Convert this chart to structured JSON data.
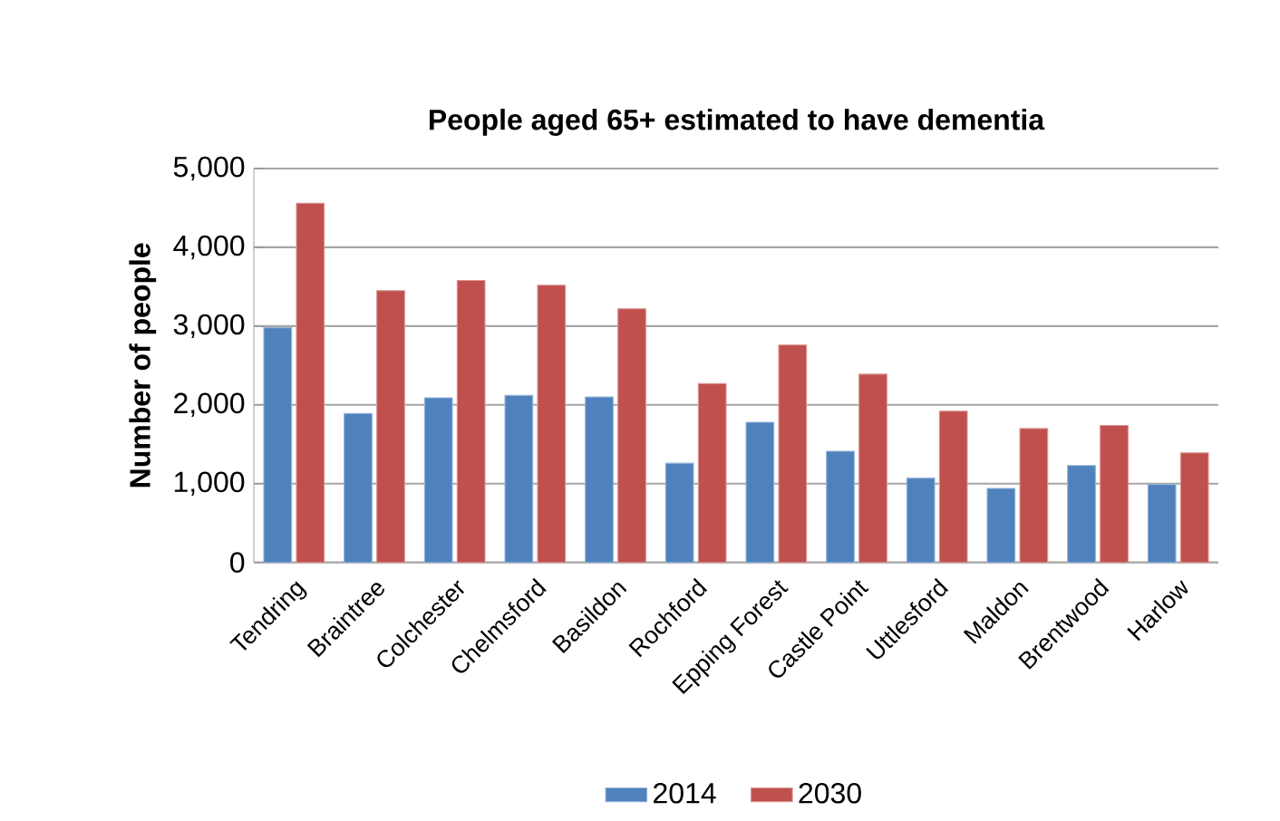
{
  "chart_data": {
    "type": "bar",
    "title": "People aged 65+ estimated to have dementia",
    "ylabel": "Number of people",
    "categories": [
      "Tendring",
      "Braintree",
      "Colchester",
      "Chelmsford",
      "Basildon",
      "Rochford",
      "Epping Forest",
      "Castle Point",
      "Uttlesford",
      "Maldon",
      "Brentwood",
      "Harlow"
    ],
    "series": [
      {
        "name": "2014",
        "color": "#4f81bd",
        "values": [
          2980,
          1890,
          2090,
          2120,
          2100,
          1260,
          1780,
          1410,
          1070,
          940,
          1230,
          990
        ]
      },
      {
        "name": "2030",
        "color": "#c0504d",
        "values": [
          4560,
          3450,
          3580,
          3520,
          3220,
          2270,
          2760,
          2390,
          1920,
          1700,
          1740,
          1390
        ]
      }
    ],
    "ylim": [
      0,
      5000
    ],
    "yticks": [
      {
        "value": 0,
        "label": "0"
      },
      {
        "value": 1000,
        "label": "1,000"
      },
      {
        "value": 2000,
        "label": "2,000"
      },
      {
        "value": 3000,
        "label": "3,000"
      },
      {
        "value": 4000,
        "label": "4,000"
      },
      {
        "value": 5000,
        "label": "5,000"
      }
    ],
    "grid": "y",
    "legend": "bottom"
  }
}
